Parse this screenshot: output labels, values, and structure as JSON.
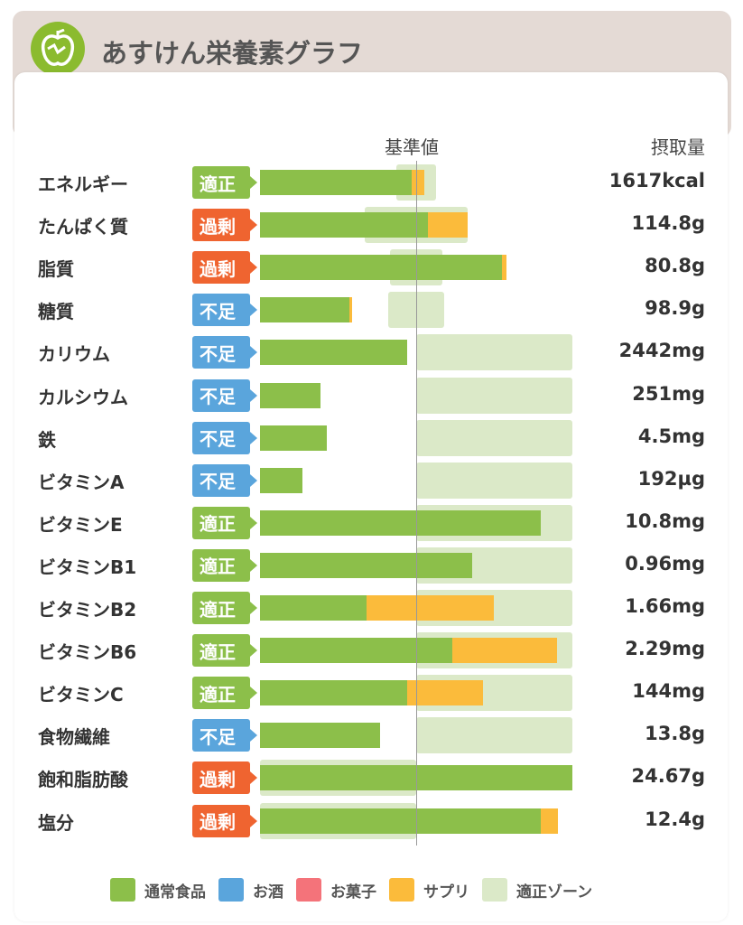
{
  "header": {
    "title": "あすけん栄養素グラフ"
  },
  "colors": {
    "food": "#8cbf4a",
    "alcohol": "#5aa5dc",
    "sweets": "#f4737a",
    "supplement": "#fbbb3b",
    "zone": "#dbe9c8",
    "ok": "#8cbf4a",
    "over": "#ef6430",
    "under": "#5aa5dc"
  },
  "chart_data": {
    "type": "bar",
    "unit_note": "percent of reference value",
    "xlim": [
      0,
      200
    ],
    "reference_label": "基準値",
    "intake_label": "摂取量",
    "legend": [
      "通常食品",
      "お酒",
      "お菓子",
      "サプリ",
      "適正ゾーン"
    ],
    "rows": [
      {
        "name": "エネルギー",
        "status": "適正",
        "kind": "ok",
        "food": 97,
        "supplement": 8,
        "zone": [
          87,
          113
        ],
        "intake": "1617kcal"
      },
      {
        "name": "たんぱく質",
        "status": "過剰",
        "kind": "over",
        "food": 107.5,
        "supplement": 25.5,
        "zone": [
          67,
          133
        ],
        "intake": "114.8g"
      },
      {
        "name": "脂質",
        "status": "過剰",
        "kind": "over",
        "food": 155,
        "supplement": 3,
        "zone": [
          83,
          117
        ],
        "intake": "80.8g"
      },
      {
        "name": "糖質",
        "status": "不足",
        "kind": "under",
        "food": 57,
        "supplement": 2,
        "zone": [
          82,
          118
        ],
        "intake": "98.9g"
      },
      {
        "name": "カリウム",
        "status": "不足",
        "kind": "under",
        "food": 94,
        "supplement": 0,
        "zone": [
          100,
          200
        ],
        "intake": "2442mg"
      },
      {
        "name": "カルシウム",
        "status": "不足",
        "kind": "under",
        "food": 39,
        "supplement": 0,
        "zone": [
          100,
          200
        ],
        "intake": "251mg"
      },
      {
        "name": "鉄",
        "status": "不足",
        "kind": "under",
        "food": 43,
        "supplement": 0,
        "zone": [
          100,
          200
        ],
        "intake": "4.5mg"
      },
      {
        "name": "ビタミンA",
        "status": "不足",
        "kind": "under",
        "food": 27,
        "supplement": 0,
        "zone": [
          100,
          200
        ],
        "intake": "192µg"
      },
      {
        "name": "ビタミンE",
        "status": "適正",
        "kind": "ok",
        "food": 180,
        "supplement": 0,
        "zone": [
          100,
          200
        ],
        "intake": "10.8mg"
      },
      {
        "name": "ビタミンB1",
        "status": "適正",
        "kind": "ok",
        "food": 136,
        "supplement": 0,
        "zone": [
          100,
          200
        ],
        "intake": "0.96mg"
      },
      {
        "name": "ビタミンB2",
        "status": "適正",
        "kind": "ok",
        "food": 68,
        "supplement": 82,
        "zone": [
          100,
          200
        ],
        "intake": "1.66mg"
      },
      {
        "name": "ビタミンB6",
        "status": "適正",
        "kind": "ok",
        "food": 123,
        "supplement": 67,
        "zone": [
          100,
          200
        ],
        "intake": "2.29mg"
      },
      {
        "name": "ビタミンC",
        "status": "適正",
        "kind": "ok",
        "food": 94,
        "supplement": 49,
        "zone": [
          100,
          200
        ],
        "intake": "144mg"
      },
      {
        "name": "食物繊維",
        "status": "不足",
        "kind": "under",
        "food": 77,
        "supplement": 0,
        "zone": [
          100,
          200
        ],
        "intake": "13.8g"
      },
      {
        "name": "飽和脂肪酸",
        "status": "過剰",
        "kind": "over",
        "food": 200,
        "supplement": 0,
        "zone": [
          0,
          100
        ],
        "intake": "24.67g"
      },
      {
        "name": "塩分",
        "status": "過剰",
        "kind": "over",
        "food": 180,
        "supplement": 11,
        "zone": [
          0,
          100
        ],
        "intake": "12.4g"
      }
    ]
  }
}
